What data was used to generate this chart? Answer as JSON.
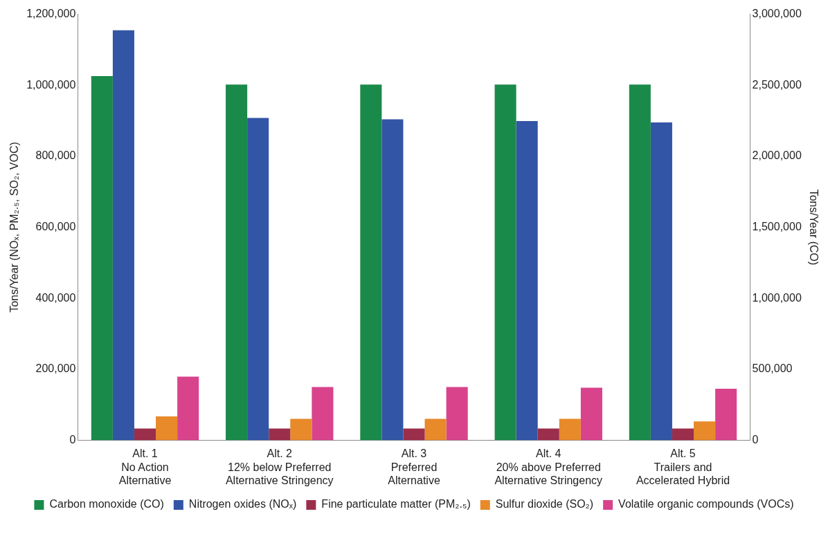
{
  "chart_data": {
    "type": "bar",
    "categories": [
      "Alt. 1\nNo Action\nAlternative",
      "Alt. 2\n12% below Preferred\nAlternative Stringency",
      "Alt. 3\nPreferred\nAlternative",
      "Alt. 4\n20% above Preferred\nAlternative Stringency",
      "Alt. 5\nTrailers and\nAccelerated Hybrid"
    ],
    "series": [
      {
        "name": "Carbon monoxide (CO)",
        "color": "#1a8a4a",
        "axis": "y2",
        "values": [
          2565000,
          2505000,
          2505000,
          2505000,
          2505000
        ]
      },
      {
        "name": "Nitrogen oxides (NOₓ)",
        "color": "#3355a5",
        "values": [
          1155000,
          908000,
          904000,
          899000,
          895000
        ]
      },
      {
        "name": "Fine particulate matter (PM₂.₅)",
        "color": "#9b2e4a",
        "values": [
          33000,
          33000,
          33000,
          33000,
          33000
        ]
      },
      {
        "name": "Sulfur dioxide (SO₂)",
        "color": "#e8892a",
        "values": [
          67000,
          60000,
          60000,
          60000,
          53000
        ]
      },
      {
        "name": "Volatile organic compounds (VOCs)",
        "color": "#d9438c",
        "values": [
          179000,
          150000,
          150000,
          148000,
          145000
        ]
      }
    ],
    "ylabel": "Tons/Year (NOₓ, PM₂.₅, SO₂, VOC)",
    "y2label": "Tons/Year (CO)",
    "ylim": [
      0,
      1200000
    ],
    "yticks": [
      0,
      {
        "value": 200000,
        "label": "200,000"
      },
      {
        "value": 400000,
        "label": "400,000"
      },
      {
        "value": 600000,
        "label": "600,000"
      },
      {
        "value": 800000,
        "label": "800,000"
      },
      {
        "value": 1000000,
        "label": "1,000,000"
      },
      {
        "value": 1200000,
        "label": "1,200,000"
      }
    ],
    "y2lim": [
      0,
      3000000
    ],
    "y2ticks": [
      0,
      {
        "value": 500000,
        "label": "500,000"
      },
      {
        "value": 1000000,
        "label": "1,000,000"
      },
      {
        "value": 1500000,
        "label": "1,500,000"
      },
      {
        "value": 2000000,
        "label": "2,000,000"
      },
      {
        "value": 2500000,
        "label": "2,500,000"
      },
      {
        "value": 3000000,
        "label": "3,000,000"
      }
    ],
    "grid": false,
    "legend": "bottom"
  }
}
